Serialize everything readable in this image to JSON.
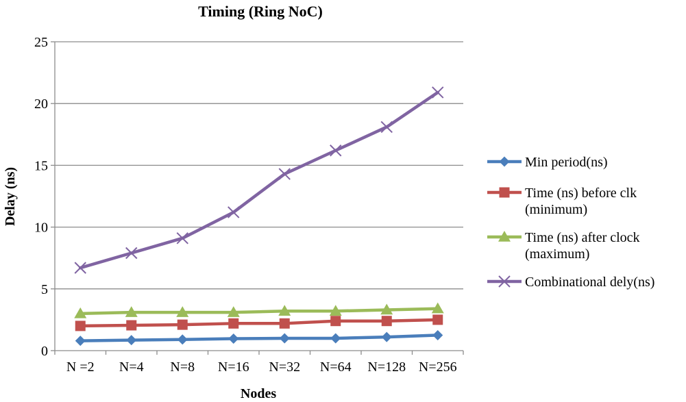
{
  "chart_data": {
    "type": "line",
    "title": "Timing (Ring NoC)",
    "xlabel": "Nodes",
    "ylabel": "Delay (ns)",
    "ylim": [
      0,
      25
    ],
    "yticks": [
      0,
      5,
      10,
      15,
      20,
      25
    ],
    "grid": true,
    "legend_position": "right",
    "categories": [
      "N =2",
      "N=4",
      "N=8",
      "N=16",
      "N=32",
      "N=64",
      "N=128",
      "N=256"
    ],
    "series": [
      {
        "name": "Min period(ns)",
        "legend_lines": [
          "Min period(ns)"
        ],
        "color": "#4a7ebb",
        "marker": "diamond",
        "values": [
          0.8,
          0.85,
          0.9,
          0.97,
          1.0,
          1.0,
          1.1,
          1.25
        ]
      },
      {
        "name": "Time (ns) before clk (minimum)",
        "legend_lines": [
          "Time (ns) before clk",
          "(minimum)"
        ],
        "color": "#c0504d",
        "marker": "square",
        "values": [
          2.0,
          2.05,
          2.1,
          2.2,
          2.2,
          2.4,
          2.4,
          2.5
        ]
      },
      {
        "name": "Time (ns) after clock (maximum)",
        "legend_lines": [
          "Time (ns) after clock",
          "(maximum)"
        ],
        "color": "#9bbb59",
        "marker": "triangle",
        "values": [
          3.0,
          3.1,
          3.1,
          3.1,
          3.2,
          3.2,
          3.3,
          3.4
        ]
      },
      {
        "name": "Combinational dely(ns)",
        "legend_lines": [
          "Combinational dely(ns)"
        ],
        "color": "#8064a2",
        "marker": "x",
        "values": [
          6.7,
          7.9,
          9.1,
          11.2,
          14.3,
          16.2,
          18.1,
          20.9
        ]
      }
    ]
  }
}
